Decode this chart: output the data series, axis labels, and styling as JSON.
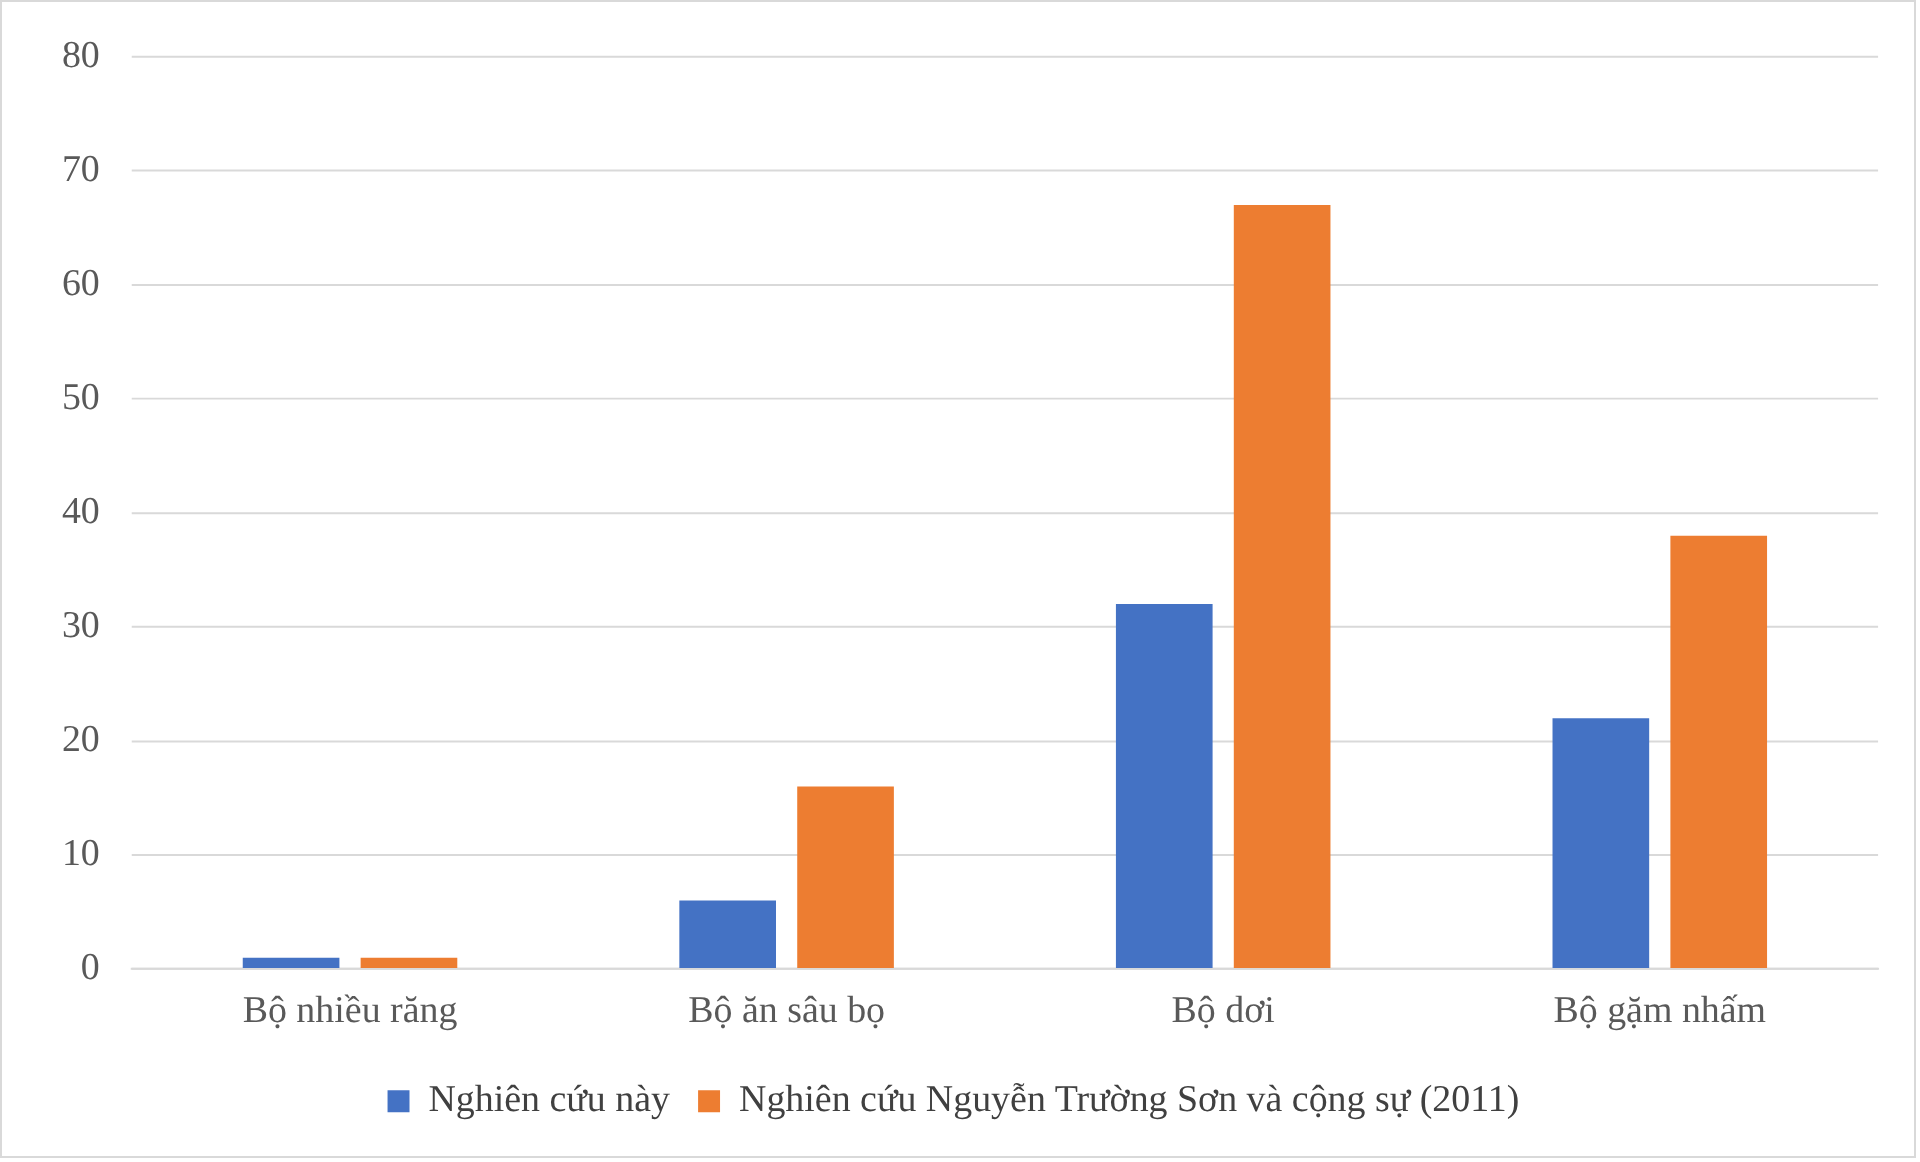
{
  "chart_data": {
    "type": "bar",
    "categories": [
      "Bộ nhiều răng",
      "Bộ ăn sâu bọ",
      "Bộ dơi",
      "Bộ gặm nhấm"
    ],
    "series": [
      {
        "name": "Nghiên cứu này",
        "color": "#4472c4",
        "values": [
          1,
          6,
          32,
          22
        ]
      },
      {
        "name": "Nghiên cứu Nguyễn Trường Sơn và cộng sự (2011)",
        "color": "#ed7d31",
        "values": [
          1,
          16,
          67,
          38
        ]
      }
    ],
    "ylim": [
      0,
      80
    ],
    "yticks": [
      0,
      10,
      20,
      30,
      40,
      50,
      60,
      70,
      80
    ],
    "grid": "y",
    "legend": "bottom"
  }
}
